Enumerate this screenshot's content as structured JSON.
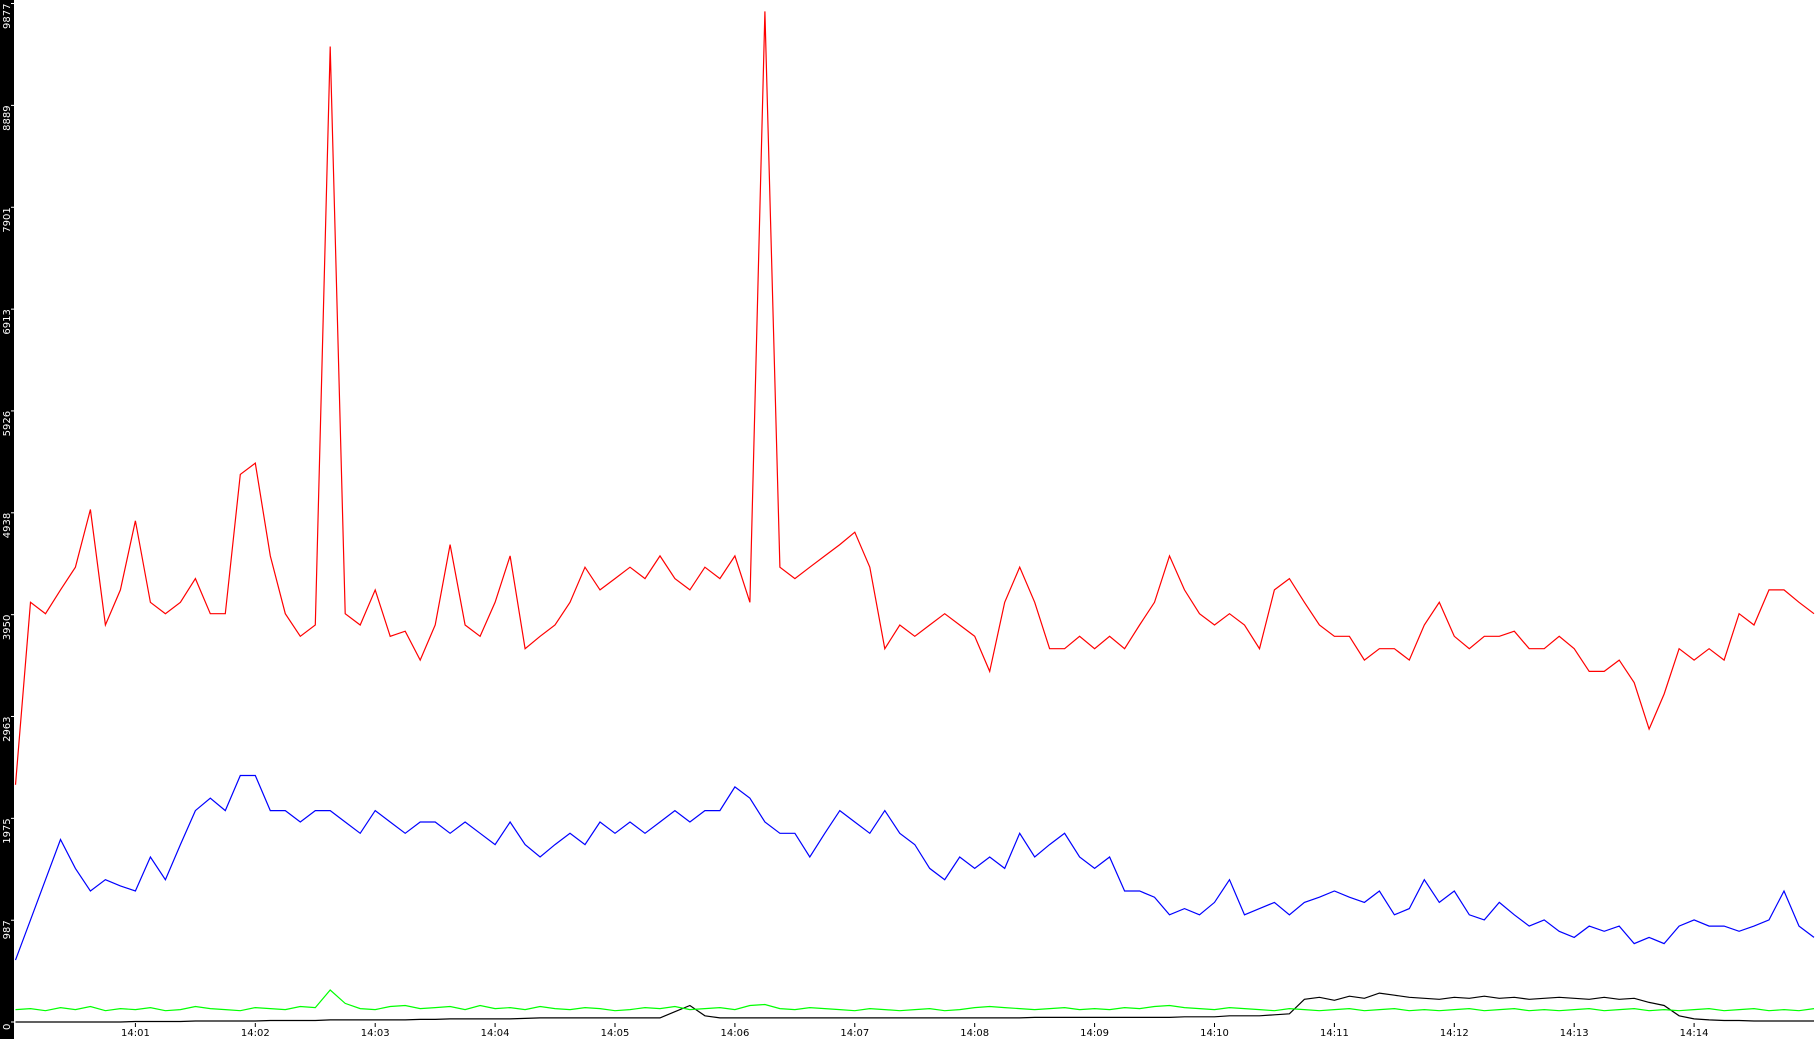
{
  "chart_data": {
    "type": "line",
    "categories": [
      null,
      null,
      null,
      null,
      null,
      null,
      null,
      null,
      "14:01",
      null,
      null,
      null,
      null,
      null,
      null,
      null,
      "14:02",
      null,
      null,
      null,
      null,
      null,
      null,
      null,
      "14:03",
      null,
      null,
      null,
      null,
      null,
      null,
      null,
      "14:04",
      null,
      null,
      null,
      null,
      null,
      null,
      null,
      "14:05",
      null,
      null,
      null,
      null,
      null,
      null,
      null,
      "14:06",
      null,
      null,
      null,
      null,
      null,
      null,
      null,
      "14:07",
      null,
      null,
      null,
      null,
      null,
      null,
      null,
      "14:08",
      null,
      null,
      null,
      null,
      null,
      null,
      null,
      "14:09",
      null,
      null,
      null,
      null,
      null,
      null,
      null,
      "14:10",
      null,
      null,
      null,
      null,
      null,
      null,
      null,
      "14:11",
      null,
      null,
      null,
      null,
      null,
      null,
      null,
      "14:12",
      null,
      null,
      null,
      null,
      null,
      null,
      null,
      "14:13",
      null,
      null,
      null,
      null,
      null,
      null,
      null,
      "14:14",
      null,
      null,
      null,
      null,
      null,
      null,
      null,
      null
    ],
    "series": [
      {
        "color": "#ff0000",
        "values": [
          2300,
          4070,
          3960,
          4190,
          4410,
          4970,
          3850,
          4190,
          4860,
          4070,
          3960,
          4070,
          4300,
          3960,
          3960,
          5310,
          5420,
          4520,
          3960,
          3740,
          3850,
          9460,
          3960,
          3850,
          4190,
          3740,
          3790,
          3510,
          3850,
          4630,
          3850,
          3740,
          4070,
          4520,
          3620,
          3740,
          3850,
          4070,
          4410,
          4190,
          4300,
          4410,
          4300,
          4520,
          4300,
          4190,
          4410,
          4300,
          4520,
          4070,
          9800,
          4410,
          4300,
          4410,
          4520,
          4630,
          4750,
          4410,
          3620,
          3850,
          3740,
          3850,
          3960,
          3850,
          3740,
          3400,
          4070,
          4410,
          4070,
          3620,
          3620,
          3740,
          3620,
          3740,
          3620,
          3850,
          4070,
          4520,
          4190,
          3960,
          3850,
          3960,
          3850,
          3620,
          4190,
          4300,
          4070,
          3850,
          3740,
          3740,
          3510,
          3620,
          3620,
          3510,
          3850,
          4070,
          3740,
          3620,
          3740,
          3740,
          3790,
          3620,
          3620,
          3740,
          3620,
          3400,
          3400,
          3510,
          3290,
          2840,
          3180,
          3620,
          3510,
          3620,
          3510,
          3960,
          3850,
          4190,
          4190,
          4070,
          3960
        ]
      },
      {
        "color": "#0000ff",
        "values": [
          600,
          990,
          1380,
          1770,
          1490,
          1270,
          1380,
          1320,
          1270,
          1600,
          1380,
          1720,
          2050,
          2170,
          2050,
          2390,
          2390,
          2050,
          2050,
          1940,
          2050,
          2050,
          1940,
          1830,
          2050,
          1940,
          1830,
          1940,
          1940,
          1830,
          1940,
          1830,
          1720,
          1940,
          1720,
          1600,
          1720,
          1830,
          1720,
          1940,
          1830,
          1940,
          1830,
          1940,
          2050,
          1940,
          2050,
          2050,
          2280,
          2170,
          1940,
          1830,
          1830,
          1600,
          1830,
          2050,
          1940,
          1830,
          2050,
          1830,
          1720,
          1490,
          1380,
          1600,
          1490,
          1600,
          1490,
          1830,
          1600,
          1720,
          1830,
          1600,
          1490,
          1600,
          1270,
          1270,
          1210,
          1040,
          1100,
          1040,
          1160,
          1380,
          1040,
          1100,
          1160,
          1040,
          1160,
          1210,
          1270,
          1210,
          1160,
          1270,
          1040,
          1100,
          1380,
          1160,
          1270,
          1040,
          990,
          1160,
          1040,
          930,
          990,
          880,
          820,
          930,
          880,
          930,
          760,
          820,
          760,
          930,
          990,
          930,
          930,
          880,
          930,
          990,
          1270,
          930,
          820
        ]
      },
      {
        "color": "#00ff00",
        "values": [
          120,
          130,
          110,
          140,
          120,
          150,
          110,
          130,
          120,
          140,
          110,
          120,
          150,
          130,
          120,
          110,
          140,
          130,
          120,
          150,
          140,
          310,
          180,
          130,
          120,
          150,
          160,
          130,
          140,
          150,
          120,
          160,
          130,
          140,
          120,
          150,
          130,
          120,
          140,
          130,
          110,
          120,
          140,
          130,
          150,
          120,
          130,
          140,
          120,
          160,
          170,
          130,
          120,
          140,
          130,
          120,
          110,
          130,
          120,
          110,
          120,
          130,
          110,
          120,
          140,
          150,
          140,
          130,
          120,
          130,
          140,
          120,
          130,
          120,
          140,
          130,
          150,
          160,
          140,
          130,
          120,
          140,
          130,
          120,
          110,
          130,
          120,
          110,
          120,
          130,
          110,
          120,
          130,
          110,
          120,
          110,
          120,
          130,
          110,
          120,
          130,
          110,
          120,
          110,
          120,
          130,
          110,
          120,
          130,
          110,
          120,
          110,
          120,
          130,
          110,
          120,
          130,
          110,
          120,
          110,
          130
        ]
      },
      {
        "color": "#000000",
        "values": [
          0,
          0,
          0,
          0,
          0,
          0,
          0,
          0,
          5,
          5,
          5,
          5,
          10,
          10,
          10,
          10,
          10,
          15,
          15,
          15,
          15,
          20,
          20,
          20,
          20,
          20,
          20,
          25,
          25,
          30,
          30,
          30,
          30,
          30,
          35,
          40,
          40,
          40,
          40,
          40,
          40,
          40,
          40,
          40,
          100,
          160,
          60,
          40,
          40,
          40,
          40,
          40,
          40,
          40,
          40,
          40,
          40,
          40,
          40,
          40,
          40,
          40,
          40,
          40,
          40,
          40,
          40,
          40,
          45,
          45,
          45,
          45,
          45,
          45,
          45,
          45,
          45,
          45,
          50,
          50,
          50,
          60,
          60,
          60,
          70,
          80,
          220,
          240,
          210,
          250,
          230,
          280,
          260,
          240,
          230,
          220,
          240,
          230,
          250,
          230,
          240,
          220,
          230,
          240,
          230,
          220,
          240,
          220,
          230,
          190,
          160,
          60,
          30,
          20,
          15,
          15,
          10,
          10,
          10,
          10,
          10
        ]
      }
    ],
    "ylim": [
      0,
      9877
    ],
    "yticks": [
      0,
      987,
      1975,
      2963,
      3950,
      4938,
      5926,
      6913,
      7901,
      8889,
      9877
    ]
  }
}
